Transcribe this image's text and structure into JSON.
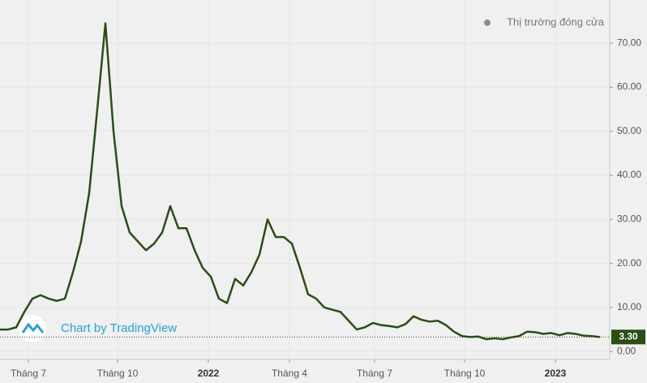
{
  "chart_data": {
    "type": "line",
    "series": [
      {
        "name": "Thị trường đóng cửa",
        "color": "#2b4d16",
        "values": [
          5.0,
          5.0,
          5.5,
          9,
          12,
          12.8,
          12,
          11.5,
          12,
          18,
          25,
          36,
          55,
          74.5,
          50,
          33,
          27,
          25,
          23,
          24.5,
          27,
          33,
          28,
          28,
          23,
          19,
          17,
          12,
          11,
          16.5,
          15,
          18,
          22,
          30,
          26,
          26,
          24.5,
          19,
          13,
          12,
          10,
          9.5,
          9,
          7,
          5,
          5.5,
          6.5,
          6,
          5.8,
          5.5,
          6.2,
          8,
          7.2,
          6.8,
          7,
          6,
          4.5,
          3.5,
          3.3,
          3.4,
          2.8,
          3,
          2.8,
          3.2,
          3.5,
          4.5,
          4.4,
          4,
          4.2,
          3.7,
          4.2,
          4,
          3.6,
          3.5,
          3.3
        ]
      }
    ],
    "last_price": {
      "value": 3.3,
      "label": "3.30"
    },
    "legend_dot_color": "#8c8c8c",
    "watermark": "Chart by TradingView",
    "xlim": [
      0,
      75.2
    ],
    "xticks": [
      {
        "value": 3.5,
        "label": "Tháng 7"
      },
      {
        "value": 14.5,
        "label": "Tháng 10"
      },
      {
        "value": 25.7,
        "label": "2022"
      },
      {
        "value": 35.7,
        "label": "Tháng 4"
      },
      {
        "value": 46.2,
        "label": "Tháng 7"
      },
      {
        "value": 57.3,
        "label": "Tháng 10"
      },
      {
        "value": 68.5,
        "label": "2023"
      }
    ],
    "ylim": [
      -1.8,
      79.8
    ],
    "yticks": [
      {
        "value": 0,
        "label": "0.00"
      },
      {
        "value": 10,
        "label": "10.00"
      },
      {
        "value": 20,
        "label": "20.00"
      },
      {
        "value": 30,
        "label": "30.00"
      },
      {
        "value": 40,
        "label": "40.00"
      },
      {
        "value": 50,
        "label": "50.00"
      },
      {
        "value": 60,
        "label": "60.00"
      },
      {
        "value": 70,
        "label": "70.00"
      }
    ],
    "grid": true
  }
}
